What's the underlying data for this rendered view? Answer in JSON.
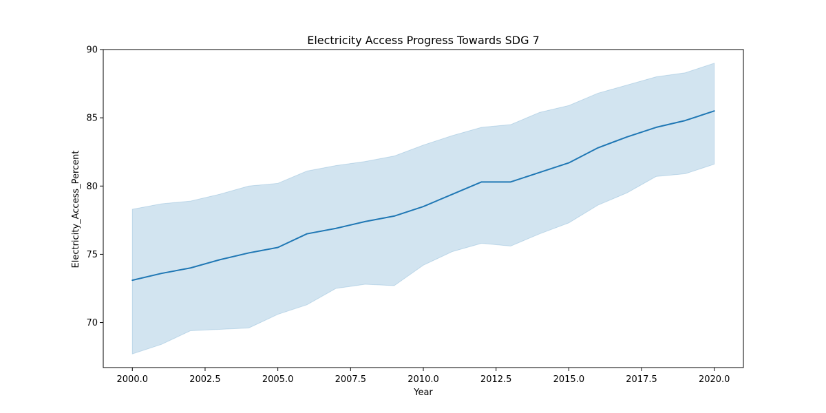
{
  "chart_data": {
    "type": "line",
    "title": "Electricity Access Progress Towards SDG 7",
    "xlabel": "Year",
    "ylabel": "Electricity_Access_Percent",
    "xlim": [
      1999,
      2021
    ],
    "ylim": [
      66.7,
      90
    ],
    "x_ticks": [
      2000,
      2002.5,
      2005,
      2007.5,
      2010,
      2012.5,
      2015,
      2017.5,
      2020
    ],
    "x_tick_labels": [
      "2000.0",
      "2002.5",
      "2005.0",
      "2007.5",
      "2010.0",
      "2012.5",
      "2015.0",
      "2017.5",
      "2020.0"
    ],
    "y_ticks": [
      70,
      75,
      80,
      85,
      90
    ],
    "y_tick_labels": [
      "70",
      "75",
      "80",
      "85",
      "90"
    ],
    "grid": false,
    "legend": "none",
    "colors": {
      "line": "#1f77b4",
      "band": "#1f77b4"
    },
    "x": [
      2000,
      2001,
      2002,
      2003,
      2004,
      2005,
      2006,
      2007,
      2008,
      2009,
      2010,
      2011,
      2012,
      2013,
      2014,
      2015,
      2016,
      2017,
      2018,
      2019,
      2020
    ],
    "series": [
      {
        "values": [
          73.1,
          73.6,
          74.0,
          74.6,
          75.1,
          75.5,
          76.5,
          76.9,
          77.4,
          77.8,
          78.5,
          79.4,
          80.3,
          80.3,
          81.0,
          81.7,
          82.8,
          83.6,
          84.3,
          84.8,
          85.5
        ],
        "lower": [
          67.7,
          68.4,
          69.4,
          69.5,
          69.6,
          70.6,
          71.3,
          72.5,
          72.8,
          72.7,
          74.2,
          75.2,
          75.8,
          75.6,
          76.5,
          77.3,
          78.6,
          79.5,
          80.7,
          80.9,
          81.6
        ],
        "upper": [
          78.3,
          78.7,
          78.9,
          79.4,
          80.0,
          80.2,
          81.1,
          81.5,
          81.8,
          82.2,
          83.0,
          83.7,
          84.3,
          84.5,
          85.4,
          85.9,
          86.8,
          87.4,
          88.0,
          88.3,
          89.0
        ]
      }
    ]
  }
}
